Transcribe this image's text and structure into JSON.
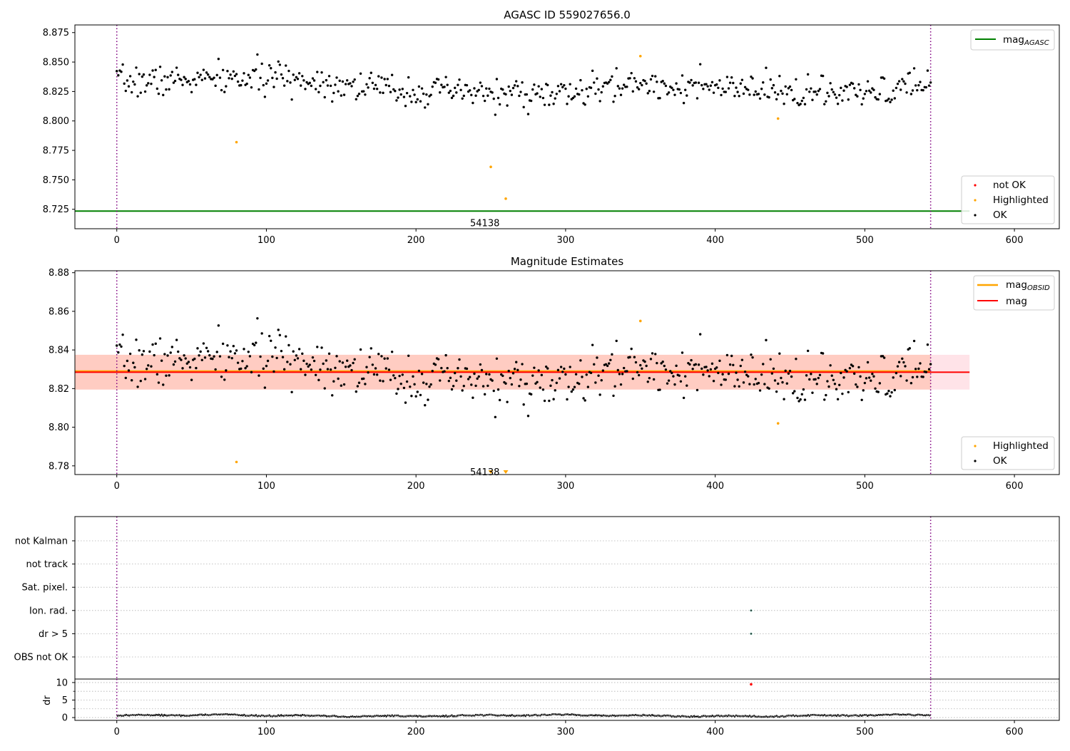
{
  "colors": {
    "ok": "#000000",
    "highlighted": "#ffa500",
    "not_ok": "#ff0000",
    "mag_agasc": "#008000",
    "mag_obsid": "#ffa500",
    "mag": "#ff0000",
    "boundary": "#800080",
    "band_outer": "#ffc0cb",
    "band_inner": "#ffa07a"
  },
  "chart_data": [
    {
      "type": "scatter",
      "title": "AGASC ID 559027656.0",
      "xlim": [
        -28,
        630
      ],
      "ylim": [
        8.7085,
        8.8815
      ],
      "xticks": [
        0,
        100,
        200,
        300,
        400,
        500,
        600
      ],
      "yticks": [
        8.725,
        8.75,
        8.775,
        8.8,
        8.825,
        8.85,
        8.875
      ],
      "ytick_labels": [
        "8.725",
        "8.750",
        "8.775",
        "8.800",
        "8.825",
        "8.850",
        "8.875"
      ],
      "observation_boundaries": [
        0,
        544
      ],
      "annotation": {
        "text": "54138",
        "x": 260,
        "y": 8.7135
      },
      "reference_line": {
        "name": "mag_AGASC",
        "name_base": "mag",
        "name_sub": "AGASC",
        "y": 8.7235,
        "x": [
          -28,
          570
        ]
      },
      "highlighted_points": [
        [
          80,
          8.782
        ],
        [
          250,
          8.761
        ],
        [
          260,
          8.734
        ],
        [
          350,
          8.855
        ],
        [
          442,
          8.802
        ]
      ],
      "not_ok_points": [],
      "ok_series": {
        "start": 0,
        "end": 544,
        "step": 1,
        "base": 8.829,
        "trend": [
          [
            0,
            8.833
          ],
          [
            110,
            8.837
          ],
          [
            200,
            8.825
          ],
          [
            300,
            8.822
          ],
          [
            345,
            8.832
          ],
          [
            420,
            8.826
          ],
          [
            500,
            8.822
          ],
          [
            544,
            8.832
          ]
        ],
        "scatter": 0.008,
        "seed": 7
      },
      "legend": {
        "placement": "lower-right",
        "entries": [
          "not OK",
          "Highlighted",
          "OK"
        ]
      },
      "legend_top": {
        "placement": "upper-right",
        "entries": [
          "mag_AGASC"
        ]
      }
    },
    {
      "type": "scatter",
      "title": "Magnitude Estimates",
      "xlim": [
        -28,
        630
      ],
      "ylim": [
        8.7755,
        8.881
      ],
      "xticks": [
        0,
        100,
        200,
        300,
        400,
        500,
        600
      ],
      "yticks": [
        8.78,
        8.8,
        8.82,
        8.84,
        8.86,
        8.88
      ],
      "ytick_labels": [
        "8.78",
        "8.80",
        "8.82",
        "8.84",
        "8.86",
        "8.88"
      ],
      "observation_boundaries": [
        0,
        544
      ],
      "annotation": {
        "text": "54138",
        "x": 260,
        "y": 8.7785
      },
      "mag_line": {
        "name": "mag",
        "y": 8.8285,
        "x": [
          -28,
          570
        ]
      },
      "mag_band": {
        "y0": 8.8195,
        "y1": 8.8375,
        "x": [
          -28,
          570
        ]
      },
      "mag_obsid_band": {
        "y0": 8.8195,
        "y1": 8.8375,
        "x": [
          -28,
          544
        ]
      },
      "mag_obsid_line": {
        "name": "mag_OBSID",
        "name_base": "mag",
        "name_sub": "OBSID",
        "y": 8.829,
        "x": [
          -28,
          544
        ]
      },
      "highlighted_points": [
        [
          80,
          8.782
        ],
        [
          350,
          8.855
        ],
        [
          442,
          8.802
        ]
      ],
      "highlighted_markers_offscale": [
        250,
        260
      ],
      "legend": {
        "placement": "lower-right",
        "entries": [
          "Highlighted",
          "OK"
        ]
      },
      "legend_top": {
        "placement": "upper-right",
        "entries": [
          "mag_OBSID",
          "mag"
        ]
      }
    },
    {
      "type": "scatter",
      "title": "",
      "xlim": [
        -28,
        630
      ],
      "categories": [
        "not Kalman",
        "not track",
        "Sat. pixel.",
        "Ion. rad.",
        "dr > 5",
        "OBS not OK"
      ],
      "flag_points": [
        {
          "category": "Ion. rad.",
          "x": 424
        },
        {
          "category": "dr > 5",
          "x": 424
        }
      ],
      "observation_boundaries": [
        0,
        544
      ],
      "grid": true
    },
    {
      "type": "line",
      "title": "",
      "ylabel": "dr",
      "xlim": [
        -28,
        630
      ],
      "ylim": [
        -0.8,
        11
      ],
      "xticks": [
        0,
        100,
        200,
        300,
        400,
        500,
        600
      ],
      "yticks": [
        0,
        5,
        10
      ],
      "minor_yticks": [
        2.5,
        7.5
      ],
      "observation_boundaries": [
        0,
        544
      ],
      "dr_series": {
        "start": 0,
        "end": 544,
        "step": 1,
        "base": 0.55,
        "amp": 0.35,
        "seed": 13
      },
      "red_point": [
        424,
        9.5
      ]
    }
  ]
}
